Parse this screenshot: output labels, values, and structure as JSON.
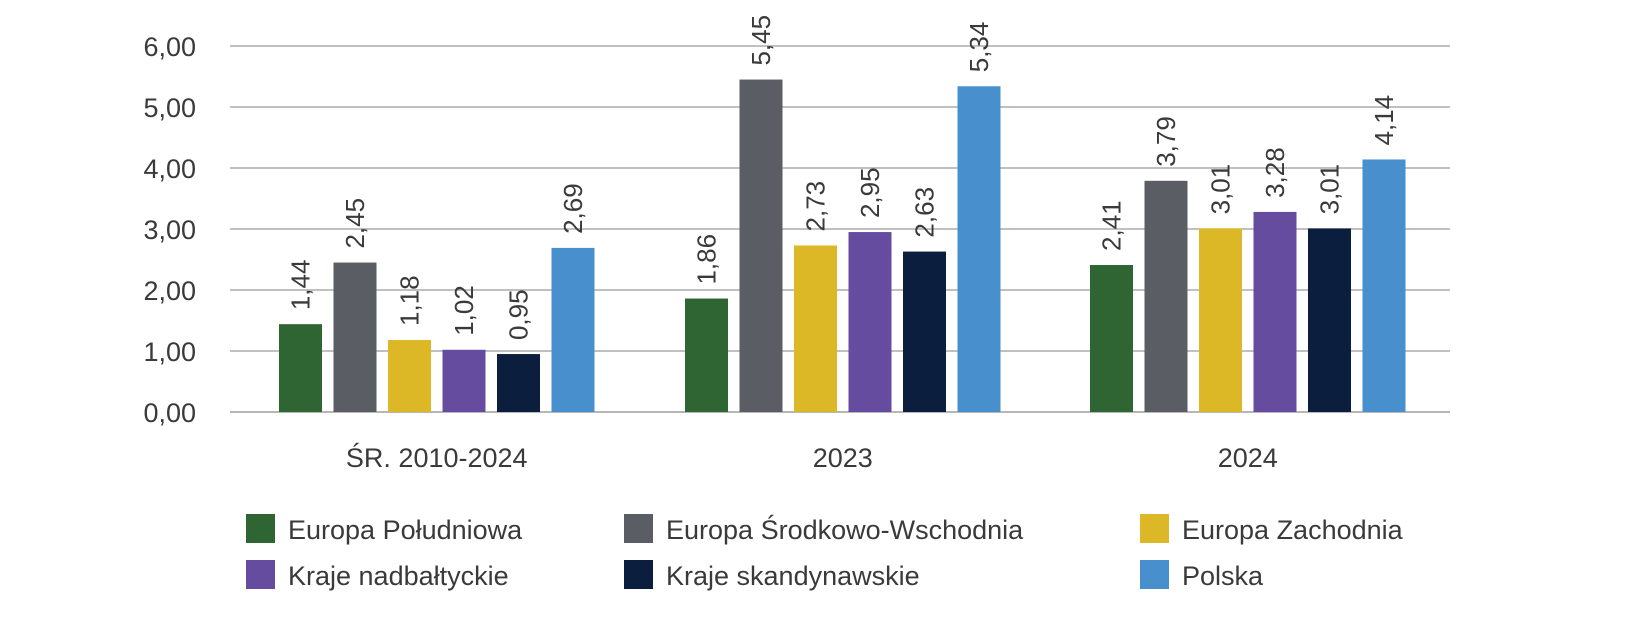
{
  "chart_data": {
    "type": "bar",
    "categories": [
      "ŚR. 2010-2024",
      "2023",
      "2024"
    ],
    "series": [
      {
        "name": "Europa Południowa",
        "color": "#2e6532",
        "values": [
          1.44,
          1.86,
          2.41
        ],
        "labels": [
          "1,44",
          "1,86",
          "2,41"
        ]
      },
      {
        "name": "Europa Środkowo-Wschodnia",
        "color": "#5a5e64",
        "values": [
          2.45,
          5.45,
          3.79
        ],
        "labels": [
          "2,45",
          "5,45",
          "3,79"
        ]
      },
      {
        "name": "Europa Zachodnia",
        "color": "#ddb826",
        "values": [
          1.18,
          2.73,
          3.01
        ],
        "labels": [
          "1,18",
          "2,73",
          "3,01"
        ]
      },
      {
        "name": "Kraje nadbałtyckie",
        "color": "#664c9e",
        "values": [
          1.02,
          2.95,
          3.28
        ],
        "labels": [
          "1,02",
          "2,95",
          "3,28"
        ]
      },
      {
        "name": "Kraje skandynawskie",
        "color": "#0c1e3e",
        "values": [
          0.95,
          2.63,
          3.01
        ],
        "labels": [
          "0,95",
          "2,63",
          "3,01"
        ]
      },
      {
        "name": "Polska",
        "color": "#4790cd",
        "values": [
          2.69,
          5.34,
          4.14
        ],
        "labels": [
          "2,69",
          "5,34",
          "4,14"
        ]
      }
    ],
    "ylim": [
      0,
      6
    ],
    "yticks": [
      0,
      1,
      2,
      3,
      4,
      5,
      6
    ],
    "ytick_labels": [
      "0,00",
      "1,00",
      "2,00",
      "3,00",
      "4,00",
      "5,00",
      "6,00"
    ],
    "grid": true,
    "legend": "bottom",
    "title": "",
    "xlabel": "",
    "ylabel": ""
  }
}
